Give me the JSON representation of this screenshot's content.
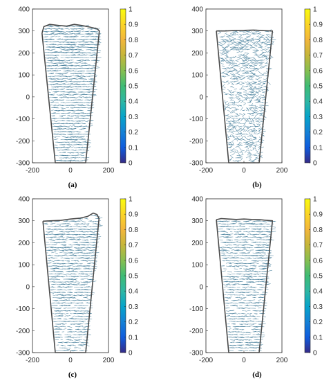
{
  "figure": {
    "colormap": "parula",
    "colors": {
      "outline": "#4a4a4a",
      "vector": "#2d6e8e",
      "axis": "#262626"
    }
  },
  "chart_data": [
    {
      "type": "quiver",
      "panel": "(a)",
      "xlim": [
        -200,
        200
      ],
      "ylim": [
        -300,
        400
      ],
      "xticks": [
        -200,
        0,
        200
      ],
      "yticks": [
        -300,
        -200,
        -100,
        0,
        100,
        200,
        300,
        400
      ],
      "colorbar": {
        "range": [
          0,
          1
        ],
        "ticks": [
          "0",
          "0.1",
          "0.2",
          "0.3",
          "0.4",
          "0.5",
          "0.6",
          "0.7",
          "0.8",
          "0.9",
          "1"
        ]
      },
      "boundary": [
        [
          -150,
          290
        ],
        [
          -140,
          320
        ],
        [
          -110,
          330
        ],
        [
          -60,
          325
        ],
        [
          -20,
          322
        ],
        [
          20,
          330
        ],
        [
          60,
          325
        ],
        [
          100,
          318
        ],
        [
          140,
          310
        ],
        [
          152,
          300
        ],
        [
          80,
          -300
        ],
        [
          -80,
          -300
        ],
        [
          -150,
          290
        ]
      ],
      "field": {
        "dominant_direction": "horizontal",
        "relative_density": 1.0
      }
    },
    {
      "type": "quiver",
      "panel": "(b)",
      "xlim": [
        -200,
        200
      ],
      "ylim": [
        -300,
        400
      ],
      "xticks": [
        -200,
        0,
        200
      ],
      "yticks": [
        -300,
        -200,
        -100,
        0,
        100,
        200,
        300,
        400
      ],
      "colorbar": {
        "range": [
          0,
          1
        ],
        "ticks": [
          "0",
          "0.1",
          "0.2",
          "0.3",
          "0.4",
          "0.5",
          "0.6",
          "0.7",
          "0.8",
          "0.9",
          "1"
        ]
      },
      "boundary": [
        [
          -145,
          300
        ],
        [
          -100,
          300
        ],
        [
          -50,
          302
        ],
        [
          0,
          303
        ],
        [
          50,
          304
        ],
        [
          100,
          302
        ],
        [
          150,
          300
        ],
        [
          80,
          -300
        ],
        [
          -80,
          -300
        ],
        [
          -145,
          300
        ]
      ],
      "field": {
        "dominant_direction": "mixed",
        "relative_density": 0.8
      }
    },
    {
      "type": "quiver",
      "panel": "(c)",
      "xlim": [
        -200,
        200
      ],
      "ylim": [
        -300,
        400
      ],
      "xticks": [
        -200,
        0,
        200
      ],
      "yticks": [
        -300,
        -200,
        -100,
        0,
        100,
        200,
        300,
        400
      ],
      "colorbar": {
        "range": [
          0,
          1
        ],
        "ticks": [
          "0",
          "0.1",
          "0.2",
          "0.3",
          "0.4",
          "0.5",
          "0.6",
          "0.7",
          "0.8",
          "0.9",
          "1"
        ]
      },
      "boundary": [
        [
          -145,
          298
        ],
        [
          -100,
          300
        ],
        [
          -50,
          302
        ],
        [
          0,
          308
        ],
        [
          50,
          312
        ],
        [
          90,
          320
        ],
        [
          120,
          335
        ],
        [
          140,
          328
        ],
        [
          150,
          310
        ],
        [
          80,
          -300
        ],
        [
          -80,
          -300
        ],
        [
          -145,
          298
        ]
      ],
      "field": {
        "dominant_direction": "horizontal",
        "relative_density": 0.9
      }
    },
    {
      "type": "quiver",
      "panel": "(d)",
      "xlim": [
        -200,
        200
      ],
      "ylim": [
        -300,
        400
      ],
      "xticks": [
        -200,
        0,
        200
      ],
      "yticks": [
        -300,
        -200,
        -100,
        0,
        100,
        200,
        300,
        400
      ],
      "colorbar": {
        "range": [
          0,
          1
        ],
        "ticks": [
          "0",
          "0.1",
          "0.2",
          "0.3",
          "0.4",
          "0.5",
          "0.6",
          "0.7",
          "0.8",
          "0.9",
          "1"
        ]
      },
      "boundary": [
        [
          -145,
          305
        ],
        [
          -120,
          310
        ],
        [
          -80,
          308
        ],
        [
          -40,
          306
        ],
        [
          0,
          308
        ],
        [
          40,
          306
        ],
        [
          80,
          305
        ],
        [
          120,
          302
        ],
        [
          150,
          300
        ],
        [
          80,
          -300
        ],
        [
          -80,
          -300
        ],
        [
          -145,
          305
        ]
      ],
      "field": {
        "dominant_direction": "horizontal",
        "relative_density": 0.85
      }
    }
  ]
}
